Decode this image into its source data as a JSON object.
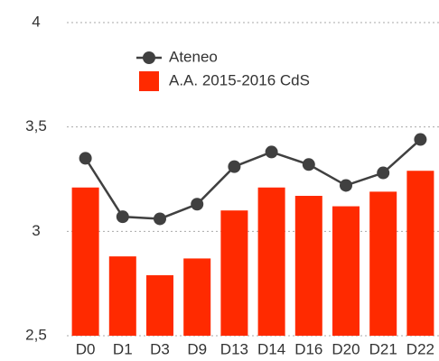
{
  "chart_data": {
    "type": "bar",
    "categories": [
      "D0",
      "D1",
      "D3",
      "D9",
      "D13",
      "D14",
      "D16",
      "D20",
      "D21",
      "D22"
    ],
    "series": [
      {
        "name": "Ateneo",
        "type": "line",
        "color": "#404040",
        "values": [
          3.35,
          3.07,
          3.06,
          3.13,
          3.31,
          3.38,
          3.32,
          3.22,
          3.28,
          3.44
        ]
      },
      {
        "name": "A.A. 2015-2016 CdS",
        "type": "bar",
        "color": "#ff2a00",
        "values": [
          3.21,
          2.88,
          2.79,
          2.87,
          3.1,
          3.21,
          3.17,
          3.12,
          3.19,
          3.29
        ]
      }
    ],
    "ylim": [
      2.5,
      4
    ],
    "yticks": [
      {
        "value": 2.5,
        "label": "2,5"
      },
      3,
      {
        "value": 3.5,
        "label": "3,5"
      },
      4
    ],
    "grid": true,
    "legend": "top"
  }
}
